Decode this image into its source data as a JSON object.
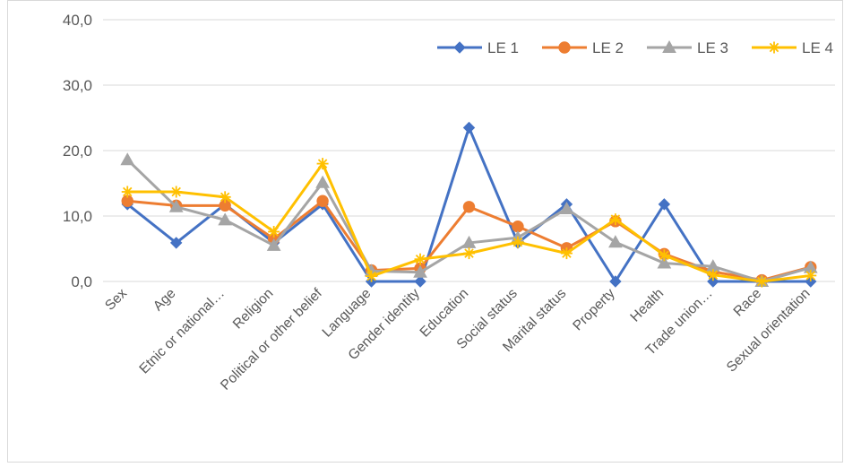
{
  "chart_data": {
    "type": "line",
    "title": "",
    "xlabel": "",
    "ylabel": "",
    "ylim": [
      0,
      40
    ],
    "yticks": [
      "0,0",
      "10,0",
      "20,0",
      "30,0",
      "40,0"
    ],
    "ytick_values": [
      0,
      10,
      20,
      30,
      40
    ],
    "grid": "horizontal",
    "legend_position": "top-right",
    "categories": [
      "Sex",
      "Age",
      "Etnic or national…",
      "Religion",
      "Political or other belief",
      "Language",
      "Gender identity",
      "Education",
      "Social status",
      "Marital status",
      "Property",
      "Health",
      "Trade union…",
      "Race",
      "Sexual orientation"
    ],
    "series": [
      {
        "name": "LE 1",
        "color": "#4472c4",
        "marker": "diamond",
        "values": [
          11.8,
          5.9,
          11.8,
          5.9,
          11.8,
          0.0,
          0.0,
          23.5,
          5.9,
          11.8,
          0.0,
          11.8,
          0.0,
          0.0,
          0.0
        ]
      },
      {
        "name": "LE 2",
        "color": "#ed7d31",
        "marker": "circle",
        "values": [
          12.3,
          11.6,
          11.6,
          6.5,
          12.3,
          1.7,
          2.0,
          11.4,
          8.4,
          5.1,
          9.2,
          4.2,
          1.5,
          0.2,
          2.2
        ]
      },
      {
        "name": "LE 3",
        "color": "#a5a5a5",
        "marker": "triangle",
        "values": [
          18.6,
          11.4,
          9.4,
          5.5,
          15.1,
          1.6,
          1.4,
          5.9,
          6.7,
          11.1,
          6.0,
          2.8,
          2.3,
          0.0,
          2.1
        ]
      },
      {
        "name": "LE 4",
        "color": "#ffc000",
        "marker": "asterisk",
        "values": [
          13.7,
          13.7,
          12.9,
          7.6,
          18.0,
          0.8,
          3.4,
          4.3,
          6.0,
          4.3,
          9.5,
          4.0,
          1.0,
          0.0,
          0.9
        ]
      }
    ]
  }
}
